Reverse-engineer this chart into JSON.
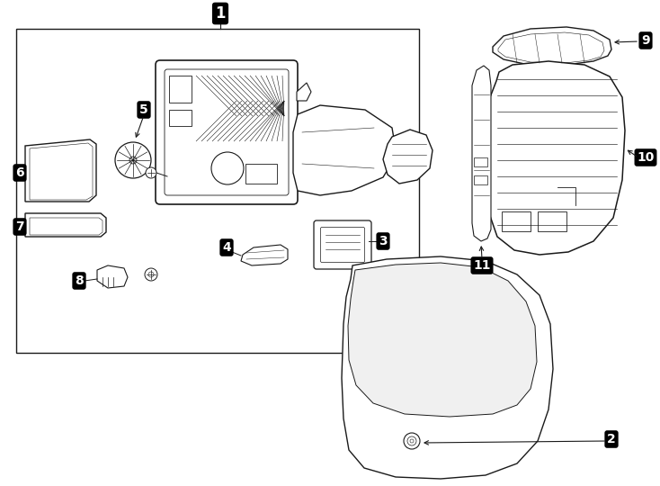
{
  "bg_color": "#ffffff",
  "lc": "#1a1a1a",
  "lw_main": 1.0,
  "lw_thin": 0.6,
  "lw_detail": 0.4,
  "label_fs": 10,
  "title_fs": 12
}
